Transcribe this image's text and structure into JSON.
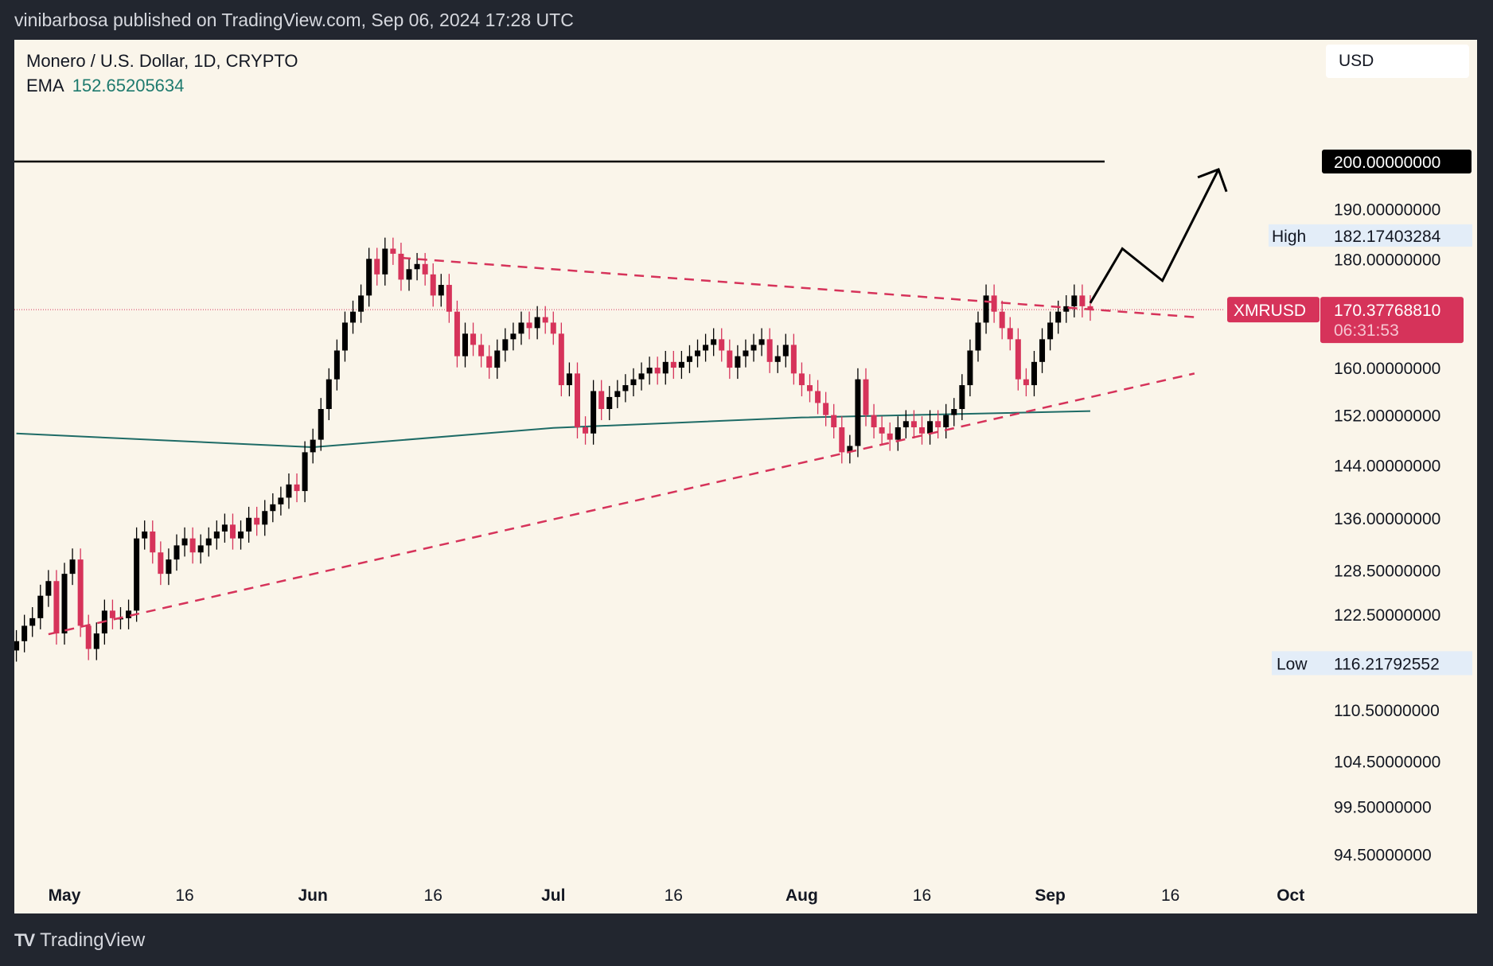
{
  "header": {
    "published": "vinibarbosa published on TradingView.com, Sep 06, 2024 17:28 UTC"
  },
  "legend": {
    "title": "Monero / U.S. Dollar, 1D, CRYPTO",
    "ema_label": "EMA",
    "ema_value": "152.65205634"
  },
  "currency": "USD",
  "footer": {
    "brand": "TradingView",
    "logo": "TV"
  },
  "chart_data": {
    "type": "candlestick",
    "symbol": "XMRUSD",
    "scale": "log",
    "ylim": [
      94.5,
      200
    ],
    "start_date": "2024-04-25",
    "closes": [
      119,
      121,
      122,
      125,
      127,
      120,
      128,
      130,
      121,
      118,
      120,
      123,
      122,
      122,
      123,
      133,
      134,
      131,
      128,
      130,
      132,
      133,
      131,
      132,
      133,
      134,
      135,
      133,
      134,
      136,
      135,
      137,
      138,
      139,
      141,
      140,
      146,
      148,
      153,
      158,
      163,
      168,
      170,
      173,
      180,
      177,
      182,
      181,
      176,
      178,
      179,
      177,
      173,
      175,
      170,
      162,
      166,
      164,
      162,
      160,
      163,
      165,
      166,
      168,
      167,
      169,
      168,
      166,
      157,
      159,
      150,
      149,
      156,
      153,
      155,
      156,
      157,
      158,
      159,
      160,
      159,
      161,
      160,
      161,
      162,
      163,
      164,
      165,
      163,
      160,
      162,
      163,
      164,
      165,
      161,
      162,
      164,
      159,
      157,
      156,
      154,
      152,
      150,
      146,
      147,
      158,
      152,
      150,
      149,
      148,
      150,
      151,
      150,
      149,
      151,
      150,
      152,
      153,
      157,
      163,
      168,
      173,
      170,
      167,
      165,
      158,
      157,
      161,
      165,
      168,
      170,
      171,
      173,
      171,
      170.38
    ],
    "ema": [
      [
        "2024-04-25",
        149
      ],
      [
        "2024-06-01",
        146.8
      ],
      [
        "2024-07-01",
        149.9
      ],
      [
        "2024-08-01",
        151.6
      ],
      [
        "2024-09-06",
        152.65
      ]
    ],
    "y_ticks": [
      "190.00000000",
      "180.00000000",
      "160.00000000",
      "152.00000000",
      "144.00000000",
      "136.00000000",
      "128.50000000",
      "122.50000000",
      "110.50000000",
      "104.50000000",
      "99.50000000",
      "94.50000000"
    ],
    "x_ticks": [
      [
        "May",
        "2024-05-01"
      ],
      [
        "16",
        "2024-05-16"
      ],
      [
        "Jun",
        "2024-06-01"
      ],
      [
        "16",
        "2024-06-16"
      ],
      [
        "Jul",
        "2024-07-01"
      ],
      [
        "16",
        "2024-07-16"
      ],
      [
        "Aug",
        "2024-08-01"
      ],
      [
        "16",
        "2024-08-16"
      ],
      [
        "Sep",
        "2024-09-01"
      ],
      [
        "16",
        "2024-09-16"
      ],
      [
        "Oct",
        "2024-10-01"
      ]
    ],
    "horizontal_level": {
      "value": 200,
      "label": "200.00000000"
    },
    "high": {
      "label": "High",
      "value": "182.17403284"
    },
    "low": {
      "label": "Low",
      "value": "116.21792552"
    },
    "last": {
      "symbol": "XMRUSD",
      "value": "170.37768810",
      "countdown": "06:31:53",
      "price": 170.38
    },
    "trendlines": [
      {
        "from": [
          "2024-06-12",
          180.2
        ],
        "to": [
          "2024-09-19",
          169
        ],
        "color": "#d6335a",
        "style": "dashed"
      },
      {
        "from": [
          "2024-04-29",
          119.9
        ],
        "to": [
          "2024-09-19",
          159
        ],
        "color": "#d6335a",
        "style": "dashed"
      }
    ],
    "projection_arrow": [
      [
        "2024-09-06",
        171.6
      ],
      [
        "2024-09-10",
        182
      ],
      [
        "2024-09-15",
        175.8
      ],
      [
        "2024-09-22",
        198.3
      ]
    ],
    "colors": {
      "up": "#000000",
      "down": "#d6335a",
      "ema": "#1e6b66",
      "background": "#faf5ea"
    }
  }
}
